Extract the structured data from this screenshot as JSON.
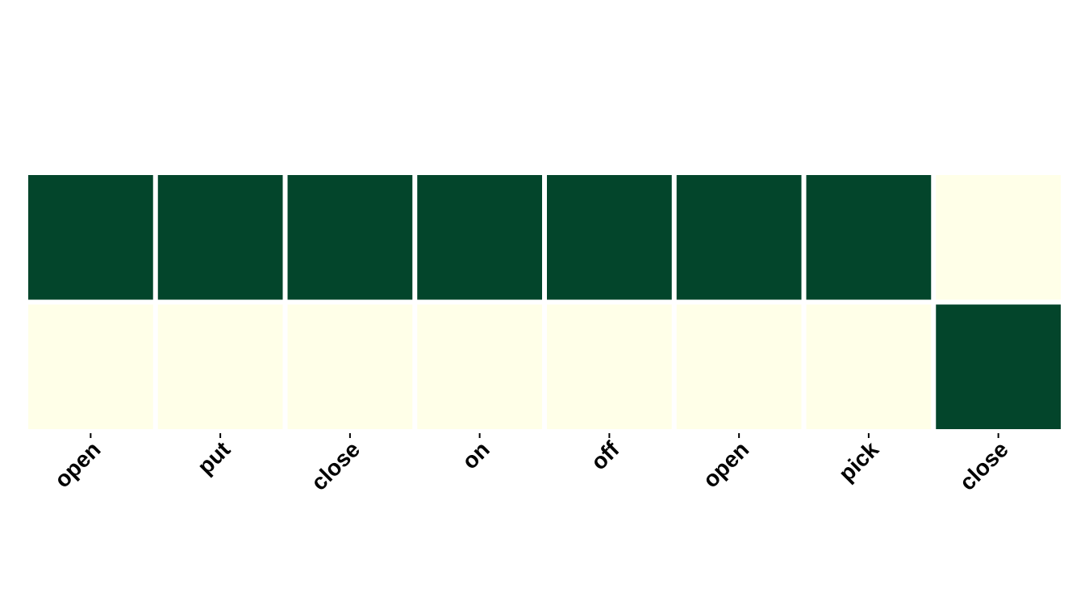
{
  "chart_data": {
    "type": "heatmap",
    "x_labels": [
      "open",
      "put",
      "close",
      "on",
      "off",
      "open",
      "pick",
      "close"
    ],
    "rows": 2,
    "values": [
      [
        1,
        1,
        1,
        1,
        1,
        1,
        1,
        0
      ],
      [
        0,
        0,
        0,
        0,
        0,
        0,
        0,
        1
      ]
    ],
    "value_range": [
      0,
      1
    ],
    "colors": {
      "high": "#03452b",
      "low": "#ffffe8"
    },
    "grid": false,
    "legend": "none"
  }
}
